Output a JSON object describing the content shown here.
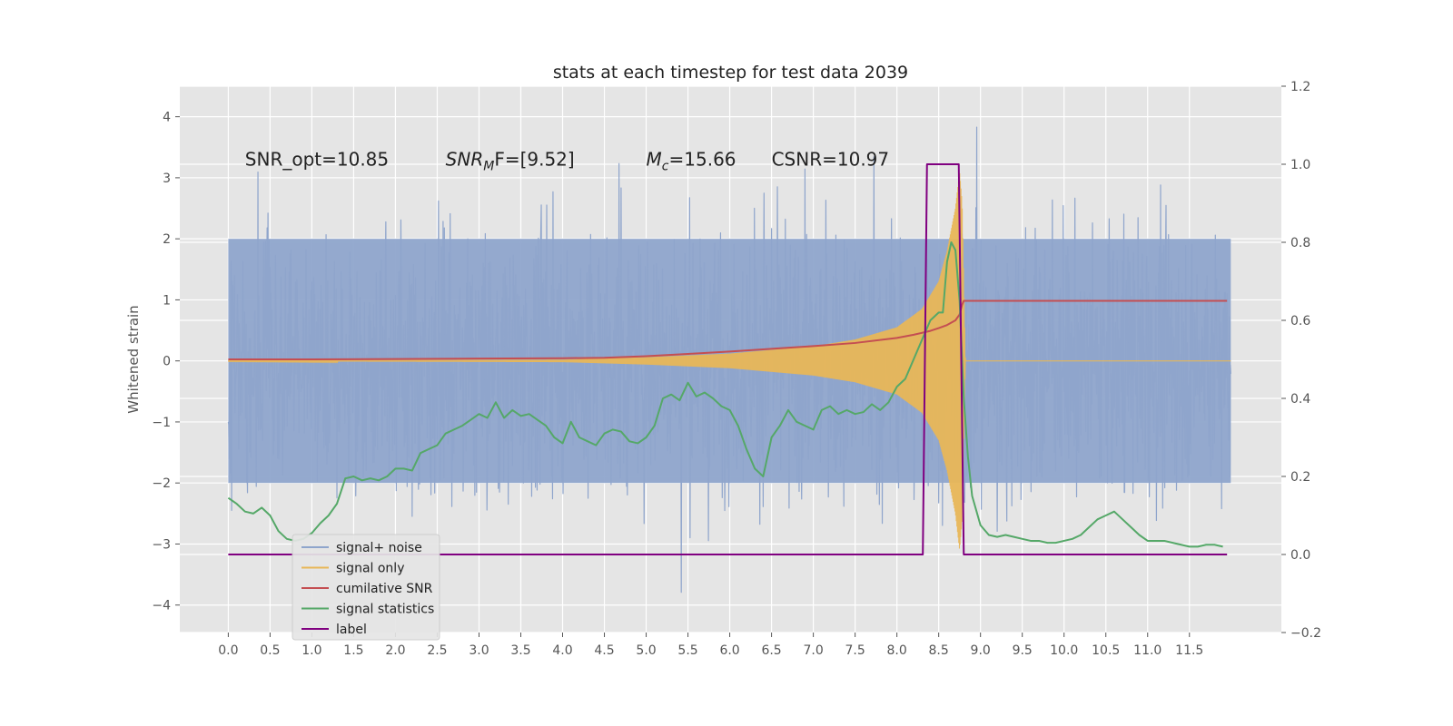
{
  "chart_data": {
    "type": "line",
    "title": "stats at each timestep for test data 2039",
    "ylabel": "Whitened strain",
    "y2label": "",
    "xlim": [
      -0.58,
      12.6
    ],
    "ylim": [
      -4.45,
      4.5
    ],
    "y2lim": [
      -0.2,
      1.2
    ],
    "x_ticks": [
      "0.0",
      "0.5",
      "1.0",
      "1.5",
      "2.0",
      "2.5",
      "3.0",
      "3.5",
      "4.0",
      "4.5",
      "5.0",
      "5.5",
      "6.0",
      "6.5",
      "7.0",
      "7.5",
      "8.0",
      "8.5",
      "9.0",
      "9.5",
      "10.0",
      "10.5",
      "11.0",
      "11.5"
    ],
    "y_ticks": [
      "4",
      "3",
      "2",
      "1",
      "0",
      "−1",
      "−2",
      "−3",
      "−4"
    ],
    "y2_ticks": [
      "1.2",
      "1.0",
      "0.8",
      "0.6",
      "0.4",
      "0.2",
      "0.0",
      "−0.2"
    ],
    "grid": true,
    "legend_position": "lower-left",
    "annotations": [
      {
        "id": "snr_opt",
        "prefix": "SNR_opt=10.85",
        "x": 0.2,
        "y": 3.2
      },
      {
        "id": "snr_mf",
        "prefix": "SNR",
        "sub": "M",
        "suffix": "F=[9.52]",
        "x": 2.6,
        "y": 3.2
      },
      {
        "id": "mc",
        "prefix": "M",
        "sub": "c",
        "suffix": "=15.66",
        "x": 5.0,
        "y": 3.2
      },
      {
        "id": "csnr",
        "prefix": "CSNR=10.97",
        "x": 6.5,
        "y": 3.2
      }
    ],
    "series": [
      {
        "name": "signal+ noise",
        "axis": "left",
        "color": "#8fa5cc",
        "kind": "noise",
        "band_core": [
          -2.0,
          2.0
        ],
        "spike_max": 4.1,
        "spike_min": -4.05
      },
      {
        "name": "signal only",
        "axis": "left",
        "color": "#e8b657",
        "kind": "chirp",
        "merger_x": 8.78,
        "envelope": [
          {
            "x": 0.0,
            "a": 0.005
          },
          {
            "x": 4.0,
            "a": 0.02
          },
          {
            "x": 5.0,
            "a": 0.06
          },
          {
            "x": 6.0,
            "a": 0.12
          },
          {
            "x": 7.0,
            "a": 0.24
          },
          {
            "x": 7.5,
            "a": 0.35
          },
          {
            "x": 8.0,
            "a": 0.55
          },
          {
            "x": 8.3,
            "a": 0.85
          },
          {
            "x": 8.5,
            "a": 1.3
          },
          {
            "x": 8.6,
            "a": 1.8
          },
          {
            "x": 8.7,
            "a": 2.5
          },
          {
            "x": 8.75,
            "a": 3.1
          },
          {
            "x": 8.78,
            "a": 2.6
          },
          {
            "x": 8.82,
            "a": 0.0
          }
        ]
      },
      {
        "name": "cumilative SNR",
        "axis": "right",
        "color": "#c44e52",
        "x": [
          0.0,
          1.0,
          2.0,
          3.0,
          4.0,
          4.5,
          5.0,
          5.5,
          6.0,
          6.5,
          7.0,
          7.5,
          8.0,
          8.2,
          8.4,
          8.5,
          8.6,
          8.7,
          8.75,
          8.78,
          8.8,
          11.95
        ],
        "y": [
          0.5,
          0.5,
          0.501,
          0.502,
          0.503,
          0.504,
          0.508,
          0.514,
          0.52,
          0.527,
          0.534,
          0.542,
          0.555,
          0.563,
          0.573,
          0.58,
          0.588,
          0.6,
          0.615,
          0.64,
          0.65,
          0.65
        ]
      },
      {
        "name": "signal statistics",
        "axis": "right",
        "color": "#55a868",
        "x": [
          0.0,
          0.1,
          0.2,
          0.3,
          0.4,
          0.5,
          0.6,
          0.7,
          0.8,
          0.9,
          1.0,
          1.1,
          1.2,
          1.3,
          1.4,
          1.5,
          1.6,
          1.7,
          1.8,
          1.9,
          2.0,
          2.1,
          2.2,
          2.3,
          2.4,
          2.5,
          2.6,
          2.7,
          2.8,
          2.9,
          3.0,
          3.1,
          3.2,
          3.3,
          3.4,
          3.5,
          3.6,
          3.7,
          3.8,
          3.9,
          4.0,
          4.1,
          4.2,
          4.3,
          4.4,
          4.5,
          4.6,
          4.7,
          4.8,
          4.9,
          5.0,
          5.1,
          5.2,
          5.3,
          5.4,
          5.5,
          5.6,
          5.7,
          5.8,
          5.9,
          6.0,
          6.1,
          6.2,
          6.3,
          6.4,
          6.5,
          6.6,
          6.7,
          6.8,
          6.9,
          7.0,
          7.1,
          7.2,
          7.3,
          7.4,
          7.5,
          7.6,
          7.7,
          7.8,
          7.9,
          8.0,
          8.1,
          8.2,
          8.3,
          8.4,
          8.5,
          8.55,
          8.6,
          8.65,
          8.7,
          8.75,
          8.8,
          8.85,
          8.9,
          9.0,
          9.1,
          9.2,
          9.3,
          9.4,
          9.5,
          9.6,
          9.7,
          9.8,
          9.9,
          10.0,
          10.1,
          10.2,
          10.3,
          10.4,
          10.5,
          10.6,
          10.7,
          10.8,
          10.9,
          11.0,
          11.1,
          11.2,
          11.3,
          11.4,
          11.5,
          11.6,
          11.7,
          11.8,
          11.9
        ],
        "y": [
          0.145,
          0.13,
          0.11,
          0.105,
          0.12,
          0.1,
          0.06,
          0.04,
          0.035,
          0.04,
          0.055,
          0.08,
          0.1,
          0.13,
          0.195,
          0.2,
          0.19,
          0.195,
          0.19,
          0.2,
          0.22,
          0.22,
          0.215,
          0.26,
          0.27,
          0.28,
          0.31,
          0.32,
          0.33,
          0.345,
          0.36,
          0.35,
          0.39,
          0.35,
          0.37,
          0.355,
          0.36,
          0.345,
          0.33,
          0.3,
          0.285,
          0.34,
          0.3,
          0.29,
          0.28,
          0.31,
          0.32,
          0.315,
          0.29,
          0.285,
          0.3,
          0.33,
          0.4,
          0.41,
          0.395,
          0.44,
          0.405,
          0.415,
          0.4,
          0.38,
          0.37,
          0.33,
          0.27,
          0.22,
          0.2,
          0.3,
          0.33,
          0.37,
          0.34,
          0.33,
          0.32,
          0.37,
          0.38,
          0.36,
          0.37,
          0.36,
          0.365,
          0.385,
          0.37,
          0.39,
          0.43,
          0.45,
          0.5,
          0.55,
          0.6,
          0.62,
          0.62,
          0.75,
          0.8,
          0.78,
          0.65,
          0.4,
          0.25,
          0.15,
          0.075,
          0.05,
          0.045,
          0.05,
          0.045,
          0.04,
          0.035,
          0.035,
          0.03,
          0.03,
          0.035,
          0.04,
          0.05,
          0.07,
          0.09,
          0.1,
          0.11,
          0.09,
          0.07,
          0.05,
          0.035,
          0.035,
          0.035,
          0.03,
          0.025,
          0.02,
          0.02,
          0.025,
          0.025,
          0.02
        ]
      },
      {
        "name": "label",
        "axis": "right",
        "color": "#800080",
        "x": [
          0.0,
          8.31,
          8.36,
          8.74,
          8.8,
          11.95
        ],
        "y": [
          0.0,
          0.0,
          1.0,
          1.0,
          0.0,
          0.0
        ]
      }
    ]
  }
}
